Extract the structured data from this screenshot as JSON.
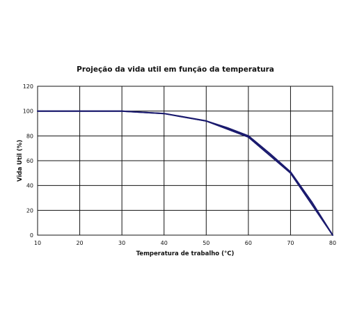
{
  "chart_data": {
    "type": "line",
    "title": "Projeção da vida util em função da temperatura",
    "xlabel": "Temperatura de trabalho (°C)",
    "ylabel": "Vida Util (%)",
    "xlim": [
      10,
      80
    ],
    "ylim": [
      0,
      120
    ],
    "xticks": [
      10,
      20,
      30,
      40,
      50,
      60,
      70,
      80
    ],
    "yticks": [
      0,
      20,
      40,
      60,
      80,
      100,
      120
    ],
    "grid": true,
    "legend": "none",
    "color": "#1a1a6e",
    "series": [
      {
        "x": [
          10,
          30,
          40,
          50,
          60,
          70,
          80
        ],
        "y": [
          100,
          100,
          98,
          92,
          79,
          50,
          0
        ]
      },
      {
        "x": [
          10,
          20,
          30,
          40,
          50,
          55,
          60,
          65,
          70,
          75,
          80
        ],
        "y": [
          100,
          100,
          100,
          98,
          92,
          86.5,
          80,
          66,
          51,
          27,
          0
        ]
      }
    ]
  }
}
